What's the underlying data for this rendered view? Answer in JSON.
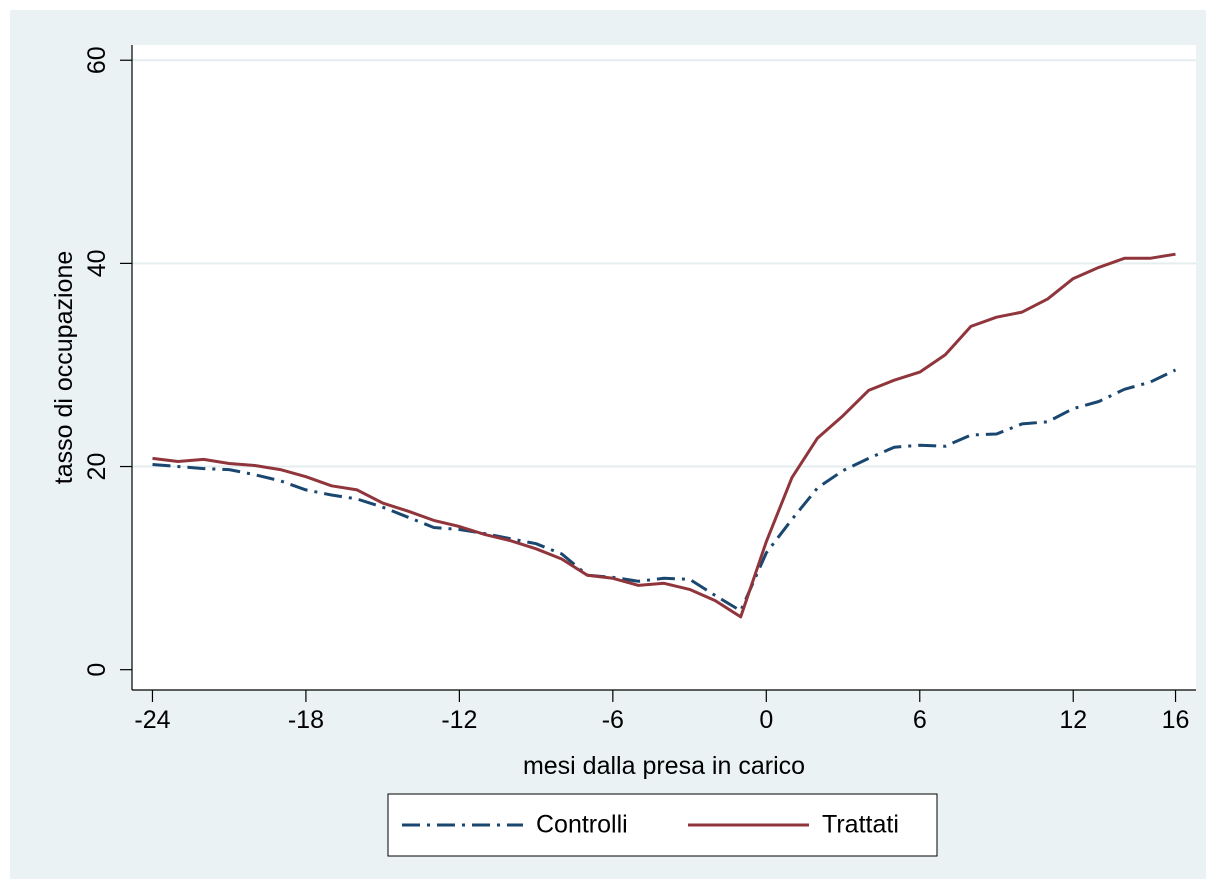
{
  "chart_data": {
    "type": "line",
    "title": "",
    "xlabel": "mesi dalla presa in carico",
    "ylabel": "tasso di occupazione",
    "xlim": [
      -24.8,
      16.8
    ],
    "ylim": [
      -2,
      61.5
    ],
    "x_ticks": [
      -24,
      -18,
      -12,
      -6,
      0,
      6,
      12,
      16
    ],
    "x_tick_labels": [
      "-24",
      "-18",
      "-12",
      "-6",
      "0",
      "6",
      "12",
      "16"
    ],
    "y_ticks": [
      0,
      20,
      40,
      60
    ],
    "y_tick_labels": [
      "0",
      "20",
      "40",
      "60"
    ],
    "grid": "horizontal",
    "legend_position": "bottom",
    "background_color": "#eaf2f3",
    "plot_background": "#ffffff",
    "gridline_color": "#e5eeef",
    "x": [
      -24,
      -23,
      -22,
      -21,
      -20,
      -19,
      -18,
      -17,
      -16,
      -15,
      -14,
      -13,
      -12,
      -11,
      -10,
      -9,
      -8,
      -7,
      -6,
      -5,
      -4,
      -3,
      -2,
      -1,
      0,
      1,
      2,
      3,
      4,
      5,
      6,
      7,
      8,
      9,
      10,
      11,
      12,
      13,
      14,
      15,
      16
    ],
    "series": [
      {
        "name": "Controlli",
        "color": "#1a476f",
        "dash": "dash-dot",
        "values": [
          20.2,
          20.0,
          19.8,
          19.7,
          19.2,
          18.6,
          17.7,
          17.2,
          16.8,
          16.0,
          15.0,
          14.0,
          13.8,
          13.4,
          12.9,
          12.4,
          11.4,
          9.3,
          9.1,
          8.7,
          9.0,
          8.9,
          7.3,
          5.8,
          11.5,
          14.8,
          17.9,
          19.6,
          20.8,
          21.9,
          22.1,
          22.0,
          23.1,
          23.2,
          24.2,
          24.4,
          25.7,
          26.4,
          27.6,
          28.3,
          29.5
        ]
      },
      {
        "name": "Trattati",
        "color": "#90353b",
        "dash": "solid",
        "values": [
          20.8,
          20.5,
          20.7,
          20.3,
          20.1,
          19.7,
          19.0,
          18.1,
          17.7,
          16.4,
          15.6,
          14.7,
          14.1,
          13.3,
          12.7,
          11.9,
          10.9,
          9.3,
          9.0,
          8.3,
          8.5,
          7.9,
          6.8,
          5.2,
          12.6,
          18.9,
          22.8,
          25.0,
          27.5,
          28.5,
          29.3,
          31.0,
          33.8,
          34.7,
          35.2,
          36.5,
          38.5,
          39.6,
          40.5,
          40.5,
          40.9
        ]
      }
    ]
  },
  "legend": {
    "items": [
      {
        "label": "Controlli"
      },
      {
        "label": "Trattati"
      }
    ]
  }
}
